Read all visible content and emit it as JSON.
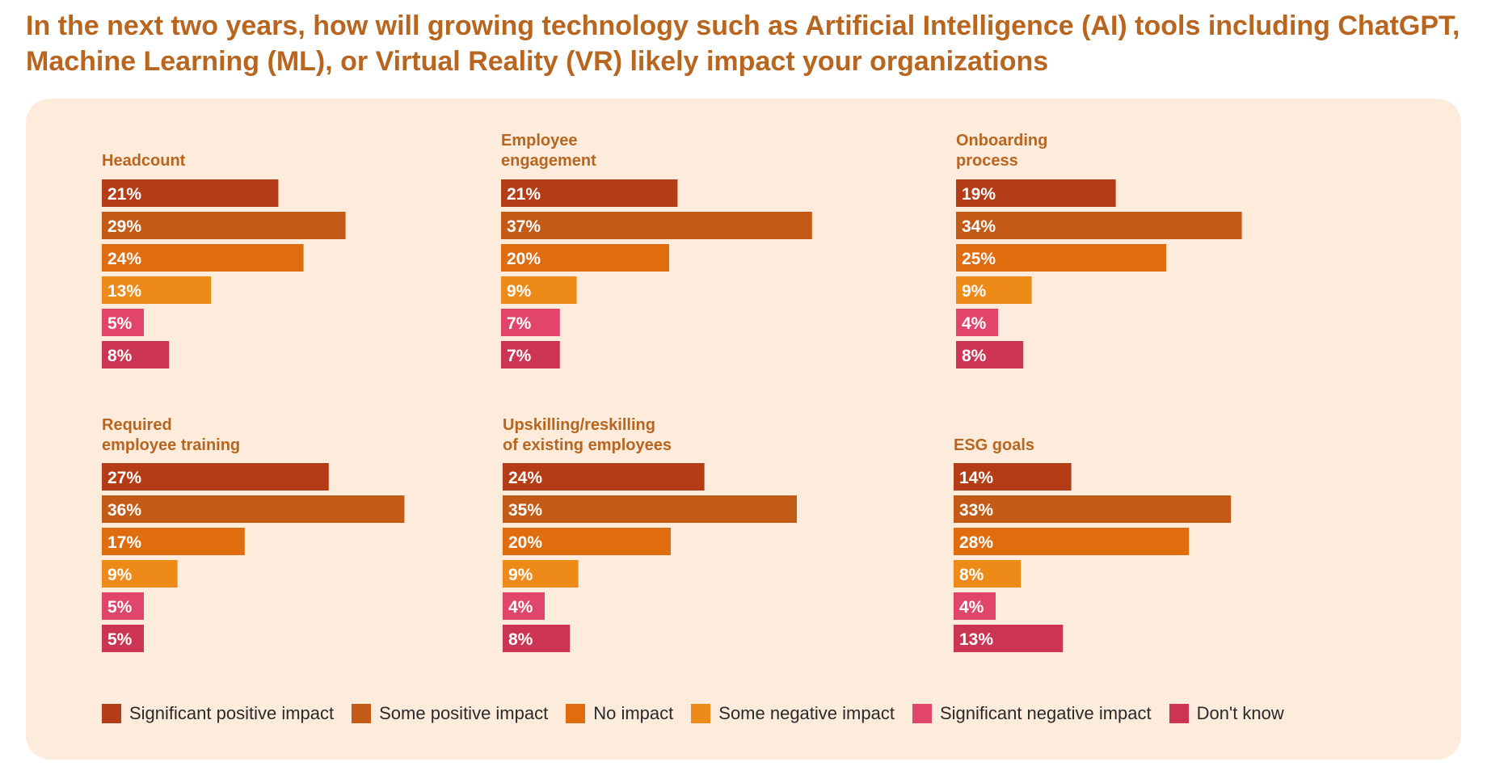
{
  "title": "In the next two years, how will growing technology such as Artificial Intelligence (AI) tools including ChatGPT, Machine Learning (ML), or Virtual Reality (VR) likely impact your organizations",
  "colors": {
    "background_panel": "#fdebdc",
    "title": "#b8651f",
    "series": [
      "#b43c17",
      "#c35b16",
      "#e06c10",
      "#ee8a18",
      "#e2456b",
      "#cc3453"
    ]
  },
  "legend": [
    "Significant positive impact",
    "Some positive impact",
    "No impact",
    "Some negative impact",
    "Significant negative impact",
    "Don't know"
  ],
  "chart_data": [
    {
      "type": "bar",
      "orientation": "horizontal",
      "title_lines": [
        "Headcount"
      ],
      "categories": [
        "Significant positive impact",
        "Some positive impact",
        "No impact",
        "Some negative impact",
        "Significant negative impact",
        "Don't know"
      ],
      "values": [
        21,
        29,
        24,
        13,
        5,
        8
      ],
      "labels": [
        "21%",
        "29%",
        "24%",
        "13%",
        "5%",
        "8%"
      ],
      "unit": "%"
    },
    {
      "type": "bar",
      "orientation": "horizontal",
      "title_lines": [
        "Employee",
        "engagement"
      ],
      "categories": [
        "Significant positive impact",
        "Some positive impact",
        "No impact",
        "Some negative impact",
        "Significant negative impact",
        "Don't know"
      ],
      "values": [
        21,
        37,
        20,
        9,
        7,
        7
      ],
      "labels": [
        "21%",
        "37%",
        "20%",
        "9%",
        "7%",
        "7%"
      ],
      "unit": "%"
    },
    {
      "type": "bar",
      "orientation": "horizontal",
      "title_lines": [
        "Onboarding",
        "process"
      ],
      "categories": [
        "Significant positive impact",
        "Some positive impact",
        "No impact",
        "Some negative impact",
        "Significant negative impact",
        "Don't know"
      ],
      "values": [
        19,
        34,
        25,
        9,
        4,
        8
      ],
      "labels": [
        "19%",
        "34%",
        "25%",
        "9%",
        "4%",
        "8%"
      ],
      "unit": "%"
    },
    {
      "type": "bar",
      "orientation": "horizontal",
      "title_lines": [
        "Required",
        "employee training"
      ],
      "categories": [
        "Significant positive impact",
        "Some positive impact",
        "No impact",
        "Some negative impact",
        "Significant negative impact",
        "Don't know"
      ],
      "values": [
        27,
        36,
        17,
        9,
        5,
        5
      ],
      "labels": [
        "27%",
        "36%",
        "17%",
        "9%",
        "5%",
        "5%"
      ],
      "unit": "%"
    },
    {
      "type": "bar",
      "orientation": "horizontal",
      "title_lines": [
        "Upskilling/reskilling",
        "of existing employees"
      ],
      "categories": [
        "Significant positive impact",
        "Some positive impact",
        "No impact",
        "Some negative impact",
        "Significant negative impact",
        "Don't know"
      ],
      "values": [
        24,
        35,
        20,
        9,
        4,
        8
      ],
      "labels": [
        "24%",
        "35%",
        "20%",
        "9%",
        "4%",
        "8%"
      ],
      "unit": "%"
    },
    {
      "type": "bar",
      "orientation": "horizontal",
      "title_lines": [
        "ESG goals"
      ],
      "categories": [
        "Significant positive impact",
        "Some positive impact",
        "No impact",
        "Some negative impact",
        "Significant negative impact",
        "Don't know"
      ],
      "values": [
        14,
        33,
        28,
        8,
        4,
        13
      ],
      "labels": [
        "14%",
        "33%",
        "28%",
        "8%",
        "4%",
        "13%"
      ],
      "unit": "%"
    }
  ]
}
